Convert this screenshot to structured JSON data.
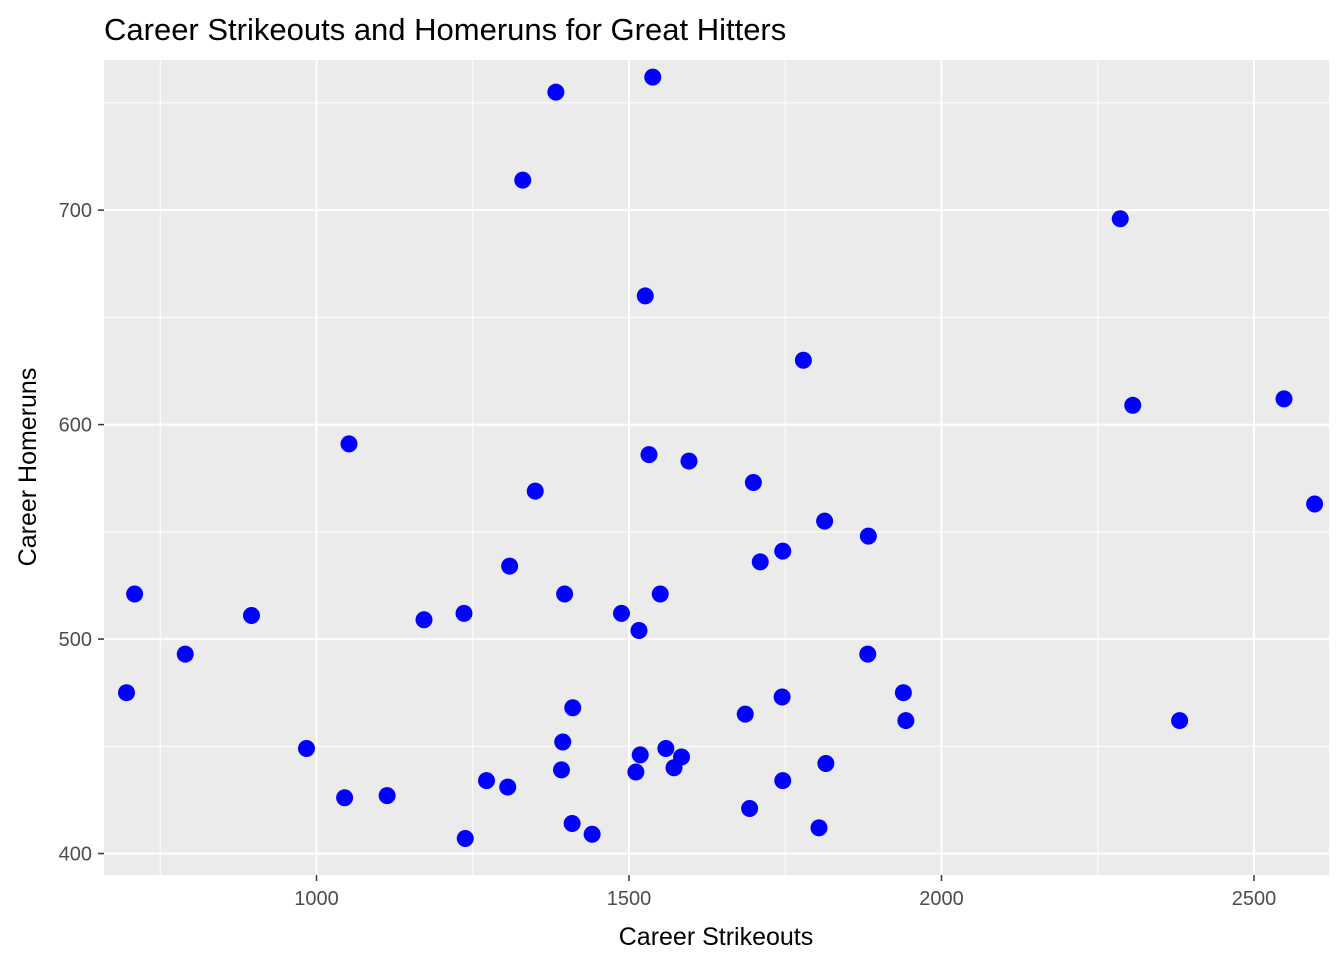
{
  "chart_data": {
    "type": "scatter",
    "title": "Career Strikeouts and Homeruns for Great Hitters",
    "xlabel": "Career Strikeouts",
    "ylabel": "Career Homeruns",
    "xlim": [
      660,
      2620
    ],
    "ylim": [
      390,
      770
    ],
    "x_ticks": [
      1000,
      1500,
      2000,
      2500
    ],
    "y_ticks": [
      400,
      500,
      600,
      700
    ],
    "x_tick_labels": [
      "1000",
      "1500",
      "2000",
      "2500"
    ],
    "y_tick_labels": [
      "400",
      "500",
      "600",
      "700"
    ],
    "grid": true,
    "point_color": "#0000FF",
    "panel_background": "#EBEBEB",
    "points": [
      {
        "x": 1538,
        "y": 762
      },
      {
        "x": 1383,
        "y": 755
      },
      {
        "x": 1330,
        "y": 714
      },
      {
        "x": 2286,
        "y": 696
      },
      {
        "x": 1526,
        "y": 660
      },
      {
        "x": 1779,
        "y": 630
      },
      {
        "x": 2306,
        "y": 609
      },
      {
        "x": 2548,
        "y": 612
      },
      {
        "x": 1052,
        "y": 591
      },
      {
        "x": 1532,
        "y": 586
      },
      {
        "x": 1596,
        "y": 583
      },
      {
        "x": 1699,
        "y": 573
      },
      {
        "x": 1350,
        "y": 569
      },
      {
        "x": 2597,
        "y": 563
      },
      {
        "x": 1813,
        "y": 555
      },
      {
        "x": 1883,
        "y": 548
      },
      {
        "x": 1746,
        "y": 541
      },
      {
        "x": 1710,
        "y": 536
      },
      {
        "x": 1309,
        "y": 534
      },
      {
        "x": 709,
        "y": 521
      },
      {
        "x": 1397,
        "y": 521
      },
      {
        "x": 1550,
        "y": 521
      },
      {
        "x": 1236,
        "y": 512
      },
      {
        "x": 1488,
        "y": 512
      },
      {
        "x": 896,
        "y": 511
      },
      {
        "x": 1172,
        "y": 509
      },
      {
        "x": 1516,
        "y": 504
      },
      {
        "x": 790,
        "y": 493
      },
      {
        "x": 1882,
        "y": 493
      },
      {
        "x": 696,
        "y": 475
      },
      {
        "x": 1939,
        "y": 475
      },
      {
        "x": 1745,
        "y": 473
      },
      {
        "x": 1410,
        "y": 468
      },
      {
        "x": 1686,
        "y": 465
      },
      {
        "x": 1943,
        "y": 462
      },
      {
        "x": 2381,
        "y": 462
      },
      {
        "x": 984,
        "y": 449
      },
      {
        "x": 1559,
        "y": 449
      },
      {
        "x": 1394,
        "y": 452
      },
      {
        "x": 1518,
        "y": 446
      },
      {
        "x": 1584,
        "y": 445
      },
      {
        "x": 1815,
        "y": 442
      },
      {
        "x": 1392,
        "y": 439
      },
      {
        "x": 1572,
        "y": 440
      },
      {
        "x": 1511,
        "y": 438
      },
      {
        "x": 1272,
        "y": 434
      },
      {
        "x": 1746,
        "y": 434
      },
      {
        "x": 1306,
        "y": 431
      },
      {
        "x": 1113,
        "y": 427
      },
      {
        "x": 1045,
        "y": 426
      },
      {
        "x": 1693,
        "y": 421
      },
      {
        "x": 1409,
        "y": 414
      },
      {
        "x": 1804,
        "y": 412
      },
      {
        "x": 1441,
        "y": 409
      },
      {
        "x": 1238,
        "y": 407
      }
    ]
  }
}
